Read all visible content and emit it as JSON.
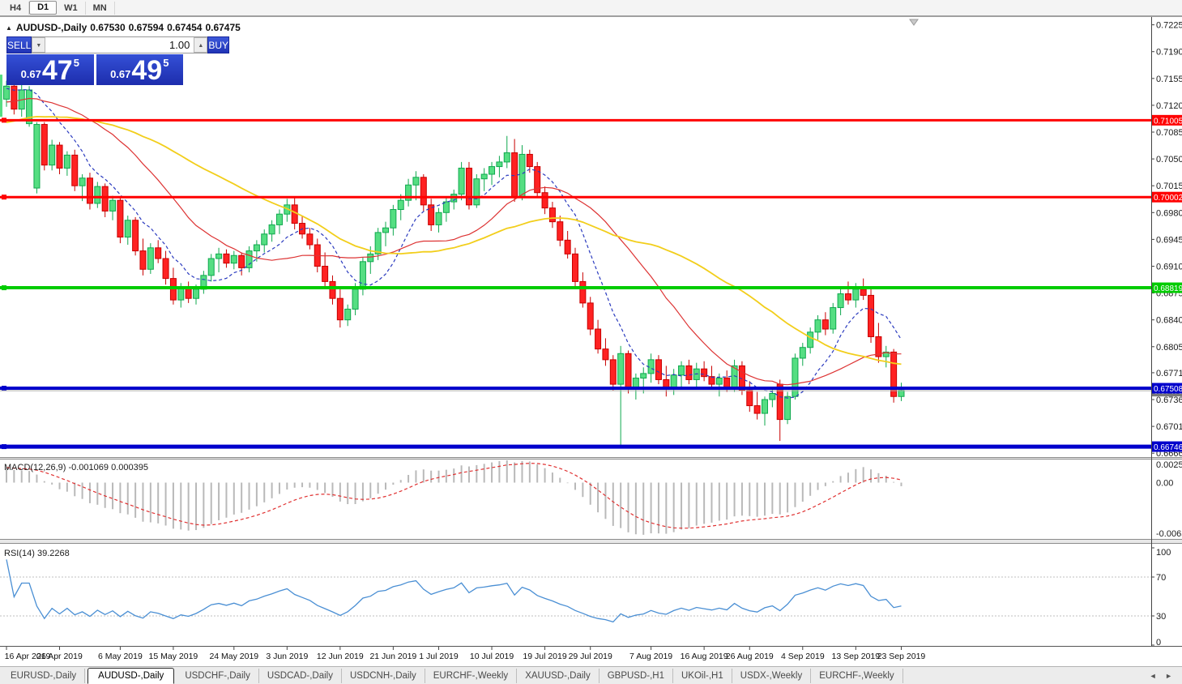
{
  "toolbar": {
    "buttons": [
      {
        "label": "H4",
        "active": false
      },
      {
        "label": "D1",
        "active": true
      },
      {
        "label": "W1",
        "active": false
      },
      {
        "label": "MN",
        "active": false
      }
    ]
  },
  "header": {
    "collapse_icon": "▲",
    "symbol": "AUDUSD-,Daily",
    "open": "0.67530",
    "high": "0.67594",
    "low": "0.67454",
    "close": "0.67475"
  },
  "trade_panel": {
    "sell_label": "SELL",
    "buy_label": "BUY",
    "volume": "1.00",
    "sell_price_prefix": "0.67",
    "sell_price_big": "47",
    "sell_price_sup": "5",
    "buy_price_prefix": "0.67",
    "buy_price_big": "49",
    "buy_price_sup": "5",
    "spinner_down": "▼",
    "spinner_up": "▲"
  },
  "price_axis": {
    "ticks": [
      "0.72250",
      "0.71900",
      "0.71550",
      "0.71200",
      "0.70850",
      "0.70500",
      "0.70150",
      "0.69800",
      "0.69450",
      "0.69100",
      "0.68750",
      "0.68400",
      "0.68050",
      "0.67710",
      "0.67360",
      "0.67010",
      "0.66660"
    ]
  },
  "hlines": [
    {
      "value": 0.71005,
      "label": "0.71005",
      "color": "#FF0000",
      "width": 3
    },
    {
      "value": 0.70002,
      "label": "0.70002",
      "color": "#FF0000",
      "width": 3
    },
    {
      "value": 0.68819,
      "label": "0.68819",
      "color": "#00CC00",
      "width": 4
    },
    {
      "value": 0.67508,
      "label": "0.67508",
      "color": "#0000CC",
      "width": 4
    },
    {
      "value": 0.66746,
      "label": "0.66746",
      "color": "#0000CC",
      "width": 5
    }
  ],
  "current_price": {
    "value": 0.67475,
    "label": "0.67475",
    "line_color": "#AAAAAA",
    "label_bg": "#7A7A7A"
  },
  "chart_data": {
    "type": "candlestick",
    "symbol": "AUDUSD",
    "timeframe": "Daily",
    "ylim": [
      0.6662,
      0.7232
    ],
    "grid": false,
    "moving_averages": [
      {
        "period": 8,
        "color": "#2B3BBF",
        "style": "dashed"
      },
      {
        "period": 21,
        "color": "#DD3333",
        "style": "solid"
      },
      {
        "period": 40,
        "color": "#F2CE1B",
        "style": "solid"
      }
    ],
    "warmup": {
      "bars": 40,
      "from": 0.704,
      "to": 0.715
    },
    "left_edge_candle": {
      "high": 0.716,
      "low": 0.7105
    },
    "time_ticks": [
      {
        "label": "16 Apr 2019",
        "i": 0
      },
      {
        "label": "26 Apr 2019",
        "i": 7
      },
      {
        "label": "6 May 2019",
        "i": 15
      },
      {
        "label": "15 May 2019",
        "i": 22
      },
      {
        "label": "24 May 2019",
        "i": 30
      },
      {
        "label": "3 Jun 2019",
        "i": 37
      },
      {
        "label": "12 Jun 2019",
        "i": 44
      },
      {
        "label": "21 Jun 2019",
        "i": 51
      },
      {
        "label": "1 Jul 2019",
        "i": 57
      },
      {
        "label": "10 Jul 2019",
        "i": 64
      },
      {
        "label": "19 Jul 2019",
        "i": 71
      },
      {
        "label": "29 Jul 2019",
        "i": 77
      },
      {
        "label": "7 Aug 2019",
        "i": 85
      },
      {
        "label": "16 Aug 2019",
        "i": 92
      },
      {
        "label": "26 Aug 2019",
        "i": 98
      },
      {
        "label": "4 Sep 2019",
        "i": 105
      },
      {
        "label": "13 Sep 2019",
        "i": 112
      },
      {
        "label": "23 Sep 2019",
        "i": 118
      }
    ],
    "candles": [
      [
        0.7128,
        0.7152,
        0.7118,
        0.7145
      ],
      [
        0.7145,
        0.715,
        0.7108,
        0.7115
      ],
      [
        0.7115,
        0.7148,
        0.7105,
        0.714
      ],
      [
        0.7096,
        0.7145,
        0.7092,
        0.714
      ],
      [
        0.7012,
        0.7098,
        0.7005,
        0.7095
      ],
      [
        0.7095,
        0.7098,
        0.7035,
        0.7042
      ],
      [
        0.7042,
        0.7075,
        0.7035,
        0.7068
      ],
      [
        0.7068,
        0.7072,
        0.703,
        0.7038
      ],
      [
        0.7038,
        0.706,
        0.7028,
        0.7055
      ],
      [
        0.7055,
        0.7062,
        0.7008,
        0.7015
      ],
      [
        0.7015,
        0.703,
        0.6995,
        0.7025
      ],
      [
        0.7025,
        0.7032,
        0.6984,
        0.6992
      ],
      [
        0.6992,
        0.702,
        0.6986,
        0.7014
      ],
      [
        0.7014,
        0.7018,
        0.6974,
        0.6982
      ],
      [
        0.6982,
        0.7002,
        0.697,
        0.6996
      ],
      [
        0.6996,
        0.7,
        0.694,
        0.6948
      ],
      [
        0.6948,
        0.6976,
        0.6938,
        0.697
      ],
      [
        0.697,
        0.6974,
        0.6924,
        0.693
      ],
      [
        0.693,
        0.6946,
        0.6898,
        0.6906
      ],
      [
        0.6906,
        0.694,
        0.69,
        0.6934
      ],
      [
        0.6934,
        0.6944,
        0.6914,
        0.692
      ],
      [
        0.692,
        0.693,
        0.6886,
        0.6894
      ],
      [
        0.6894,
        0.6908,
        0.686,
        0.6866
      ],
      [
        0.6866,
        0.6888,
        0.6856,
        0.6882
      ],
      [
        0.6882,
        0.689,
        0.6862,
        0.6868
      ],
      [
        0.6868,
        0.6886,
        0.686,
        0.688
      ],
      [
        0.688,
        0.6904,
        0.6874,
        0.6898
      ],
      [
        0.6898,
        0.6926,
        0.689,
        0.692
      ],
      [
        0.692,
        0.6934,
        0.6902,
        0.6926
      ],
      [
        0.6926,
        0.6932,
        0.6908,
        0.6914
      ],
      [
        0.6914,
        0.693,
        0.6906,
        0.6924
      ],
      [
        0.6924,
        0.6928,
        0.6898,
        0.6908
      ],
      [
        0.6908,
        0.6936,
        0.6902,
        0.693
      ],
      [
        0.693,
        0.6944,
        0.6916,
        0.6938
      ],
      [
        0.6938,
        0.6958,
        0.6928,
        0.6952
      ],
      [
        0.6952,
        0.697,
        0.6942,
        0.6964
      ],
      [
        0.6964,
        0.6984,
        0.6952,
        0.6978
      ],
      [
        0.6978,
        0.6998,
        0.6968,
        0.699
      ],
      [
        0.699,
        0.7,
        0.6958,
        0.6966
      ],
      [
        0.6966,
        0.6976,
        0.6946,
        0.6952
      ],
      [
        0.6952,
        0.696,
        0.6932,
        0.6938
      ],
      [
        0.6938,
        0.6946,
        0.6902,
        0.691
      ],
      [
        0.691,
        0.6928,
        0.6882,
        0.689
      ],
      [
        0.689,
        0.6898,
        0.686,
        0.6868
      ],
      [
        0.6868,
        0.6884,
        0.683,
        0.684
      ],
      [
        0.684,
        0.686,
        0.6832,
        0.6854
      ],
      [
        0.6854,
        0.6888,
        0.6846,
        0.688
      ],
      [
        0.688,
        0.6922,
        0.6872,
        0.6916
      ],
      [
        0.6916,
        0.6936,
        0.69,
        0.6926
      ],
      [
        0.6926,
        0.696,
        0.6918,
        0.6954
      ],
      [
        0.6954,
        0.6968,
        0.6936,
        0.696
      ],
      [
        0.696,
        0.699,
        0.695,
        0.6984
      ],
      [
        0.6984,
        0.7004,
        0.697,
        0.6996
      ],
      [
        0.6996,
        0.7024,
        0.6988,
        0.7016
      ],
      [
        0.7016,
        0.7034,
        0.6996,
        0.7026
      ],
      [
        0.7026,
        0.703,
        0.6982,
        0.699
      ],
      [
        0.699,
        0.6998,
        0.6956,
        0.6964
      ],
      [
        0.6964,
        0.6986,
        0.6954,
        0.698
      ],
      [
        0.698,
        0.7,
        0.6968,
        0.6994
      ],
      [
        0.6994,
        0.701,
        0.6984,
        0.7004
      ],
      [
        0.7004,
        0.7046,
        0.6996,
        0.7038
      ],
      [
        0.7038,
        0.7046,
        0.6984,
        0.699
      ],
      [
        0.699,
        0.703,
        0.6986,
        0.7024
      ],
      [
        0.7024,
        0.7038,
        0.7008,
        0.703
      ],
      [
        0.703,
        0.7046,
        0.7016,
        0.704
      ],
      [
        0.704,
        0.7054,
        0.7026,
        0.7046
      ],
      [
        0.7046,
        0.708,
        0.7038,
        0.7058
      ],
      [
        0.7058,
        0.7076,
        0.6994,
        0.7
      ],
      [
        0.7,
        0.7068,
        0.6996,
        0.7056
      ],
      [
        0.7056,
        0.7062,
        0.7032,
        0.704
      ],
      [
        0.704,
        0.7046,
        0.7,
        0.7006
      ],
      [
        0.7006,
        0.7014,
        0.6978,
        0.6986
      ],
      [
        0.6986,
        0.6994,
        0.696,
        0.6968
      ],
      [
        0.6968,
        0.6976,
        0.6936,
        0.6944
      ],
      [
        0.6944,
        0.6956,
        0.692,
        0.6926
      ],
      [
        0.6926,
        0.6934,
        0.6884,
        0.689
      ],
      [
        0.689,
        0.6902,
        0.6856,
        0.6862
      ],
      [
        0.6862,
        0.687,
        0.682,
        0.6828
      ],
      [
        0.6828,
        0.684,
        0.6796,
        0.6802
      ],
      [
        0.6802,
        0.6816,
        0.678,
        0.6788
      ],
      [
        0.6788,
        0.6794,
        0.6748,
        0.6756
      ],
      [
        0.6756,
        0.6806,
        0.6676,
        0.6796
      ],
      [
        0.6796,
        0.68,
        0.6744,
        0.6752
      ],
      [
        0.6752,
        0.677,
        0.6736,
        0.6764
      ],
      [
        0.6764,
        0.6778,
        0.6744,
        0.677
      ],
      [
        0.677,
        0.6796,
        0.6758,
        0.6788
      ],
      [
        0.6788,
        0.6794,
        0.6756,
        0.6762
      ],
      [
        0.6762,
        0.678,
        0.674,
        0.675
      ],
      [
        0.675,
        0.6776,
        0.6742,
        0.6768
      ],
      [
        0.6768,
        0.6786,
        0.6752,
        0.678
      ],
      [
        0.678,
        0.6788,
        0.6756,
        0.6762
      ],
      [
        0.6762,
        0.6784,
        0.675,
        0.6776
      ],
      [
        0.6776,
        0.6786,
        0.676,
        0.6766
      ],
      [
        0.6766,
        0.678,
        0.675,
        0.6756
      ],
      [
        0.6756,
        0.677,
        0.674,
        0.6764
      ],
      [
        0.6764,
        0.6774,
        0.6746,
        0.6752
      ],
      [
        0.6752,
        0.6788,
        0.6746,
        0.678
      ],
      [
        0.678,
        0.6786,
        0.6742,
        0.6748
      ],
      [
        0.6748,
        0.676,
        0.672,
        0.6728
      ],
      [
        0.6728,
        0.6746,
        0.671,
        0.6718
      ],
      [
        0.6718,
        0.674,
        0.6702,
        0.6736
      ],
      [
        0.6736,
        0.675,
        0.6726,
        0.6744
      ],
      [
        0.6756,
        0.6762,
        0.6682,
        0.671
      ],
      [
        0.671,
        0.6746,
        0.6704,
        0.674
      ],
      [
        0.674,
        0.6796,
        0.6736,
        0.679
      ],
      [
        0.679,
        0.681,
        0.678,
        0.6804
      ],
      [
        0.6804,
        0.683,
        0.6796,
        0.6824
      ],
      [
        0.6824,
        0.6846,
        0.6814,
        0.684
      ],
      [
        0.684,
        0.685,
        0.682,
        0.6828
      ],
      [
        0.6828,
        0.6862,
        0.6822,
        0.6856
      ],
      [
        0.6856,
        0.688,
        0.6846,
        0.6874
      ],
      [
        0.6874,
        0.689,
        0.686,
        0.6866
      ],
      [
        0.6866,
        0.6888,
        0.6856,
        0.688
      ],
      [
        0.688,
        0.6894,
        0.6866,
        0.6872
      ],
      [
        0.6872,
        0.6882,
        0.681,
        0.6818
      ],
      [
        0.6818,
        0.6836,
        0.6784,
        0.6792
      ],
      [
        0.6792,
        0.6806,
        0.6778,
        0.6798
      ],
      [
        0.6798,
        0.6802,
        0.6732,
        0.674
      ],
      [
        0.674,
        0.6758,
        0.6734,
        0.6748
      ]
    ]
  },
  "macd": {
    "label": "MACD(12,26,9) -0.001069 0.000395",
    "params": [
      12,
      26,
      9
    ],
    "value": "-0.001069",
    "signal_value": "0.000395",
    "axis_top": "0.002574",
    "axis_zero": "0.00",
    "axis_bottom": "-0.006320",
    "ylim": [
      -0.00632,
      0.002574
    ],
    "hist_color": "#B9B9B9",
    "signal_color": "#E03030"
  },
  "rsi": {
    "label": "RSI(14) 39.2268",
    "period": 14,
    "value": "39.2268",
    "axis": [
      "100",
      "70",
      "30",
      "0"
    ],
    "levels": [
      70,
      30
    ],
    "line_color": "#4A8FD4",
    "level_color": "#BFBFBF"
  },
  "tabs": {
    "items": [
      {
        "label": "EURUSD-,Daily",
        "active": false
      },
      {
        "label": "AUDUSD-,Daily",
        "active": true
      },
      {
        "label": "USDCHF-,Daily",
        "active": false
      },
      {
        "label": "USDCAD-,Daily",
        "active": false
      },
      {
        "label": "USDCNH-,Daily",
        "active": false
      },
      {
        "label": "EURCHF-,Weekly",
        "active": false
      },
      {
        "label": "XAUUSD-,Daily",
        "active": false
      },
      {
        "label": "GBPUSD-,H1",
        "active": false
      },
      {
        "label": "UKOil-,H1",
        "active": false
      },
      {
        "label": "USDX-,Weekly",
        "active": false
      },
      {
        "label": "EURCHF-,Weekly",
        "active": false
      }
    ],
    "nav_left": "◄",
    "nav_right": "►"
  },
  "colors": {
    "bull_fill": "#55DE82",
    "bull_stroke": "#0FA84E",
    "bear_fill": "#FF2222",
    "bear_stroke": "#C80000",
    "chart_bg": "#FFFFFF",
    "axis_text": "#1A1A1A"
  }
}
